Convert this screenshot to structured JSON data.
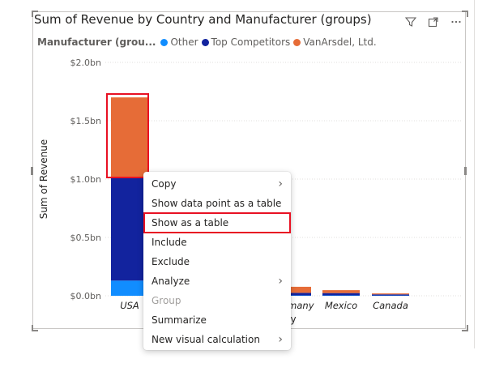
{
  "visual": {
    "title": "Sum of Revenue by Country and Manufacturer (groups)",
    "icons": [
      "filter-icon",
      "focus-mode-icon",
      "more-options-icon"
    ]
  },
  "legend": {
    "title": "Manufacturer (grou...",
    "items": [
      {
        "label": "Other",
        "color": "#118DFF"
      },
      {
        "label": "Top Competitors",
        "color": "#12239E"
      },
      {
        "label": "VanArsdel, Ltd.",
        "color": "#E66C37"
      }
    ]
  },
  "chart_data": {
    "type": "bar",
    "stacked": true,
    "categories": [
      "USA",
      "",
      "",
      "Germany",
      "Mexico",
      "Canada"
    ],
    "series": [
      {
        "name": "Other",
        "color": "#118DFF",
        "values": [
          0.13,
          0.003,
          0.003,
          0.003,
          0.003,
          0.002
        ]
      },
      {
        "name": "Top Competitors",
        "color": "#12239E",
        "values": [
          0.89,
          0.02,
          0.02,
          0.022,
          0.02,
          0.01
        ]
      },
      {
        "name": "VanArsdel, Ltd.",
        "color": "#E66C37",
        "values": [
          0.68,
          0.05,
          0.05,
          0.052,
          0.025,
          0.008
        ]
      }
    ],
    "ylabel": "Sum of Revenue",
    "xlabel": "y",
    "ylim": [
      0,
      2.0
    ],
    "yticks": [
      0,
      0.5,
      1.0,
      1.5,
      2.0
    ],
    "ytick_labels": [
      "$0.0bn",
      "$0.5bn",
      "$1.0bn",
      "$1.5bn",
      "$2.0bn"
    ],
    "grid": true
  },
  "context_menu": {
    "items": [
      {
        "label": "Copy",
        "submenu": true,
        "enabled": true
      },
      {
        "label": "Show data point as a table",
        "submenu": false,
        "enabled": true
      },
      {
        "label": "Show as a table",
        "submenu": false,
        "enabled": true
      },
      {
        "label": "Include",
        "submenu": false,
        "enabled": true
      },
      {
        "label": "Exclude",
        "submenu": false,
        "enabled": true
      },
      {
        "label": "Analyze",
        "submenu": true,
        "enabled": true
      },
      {
        "label": "Group",
        "submenu": false,
        "enabled": false
      },
      {
        "label": "Summarize",
        "submenu": false,
        "enabled": true
      },
      {
        "label": "New visual calculation",
        "submenu": true,
        "enabled": true
      }
    ]
  },
  "highlight_color": "#E81123"
}
